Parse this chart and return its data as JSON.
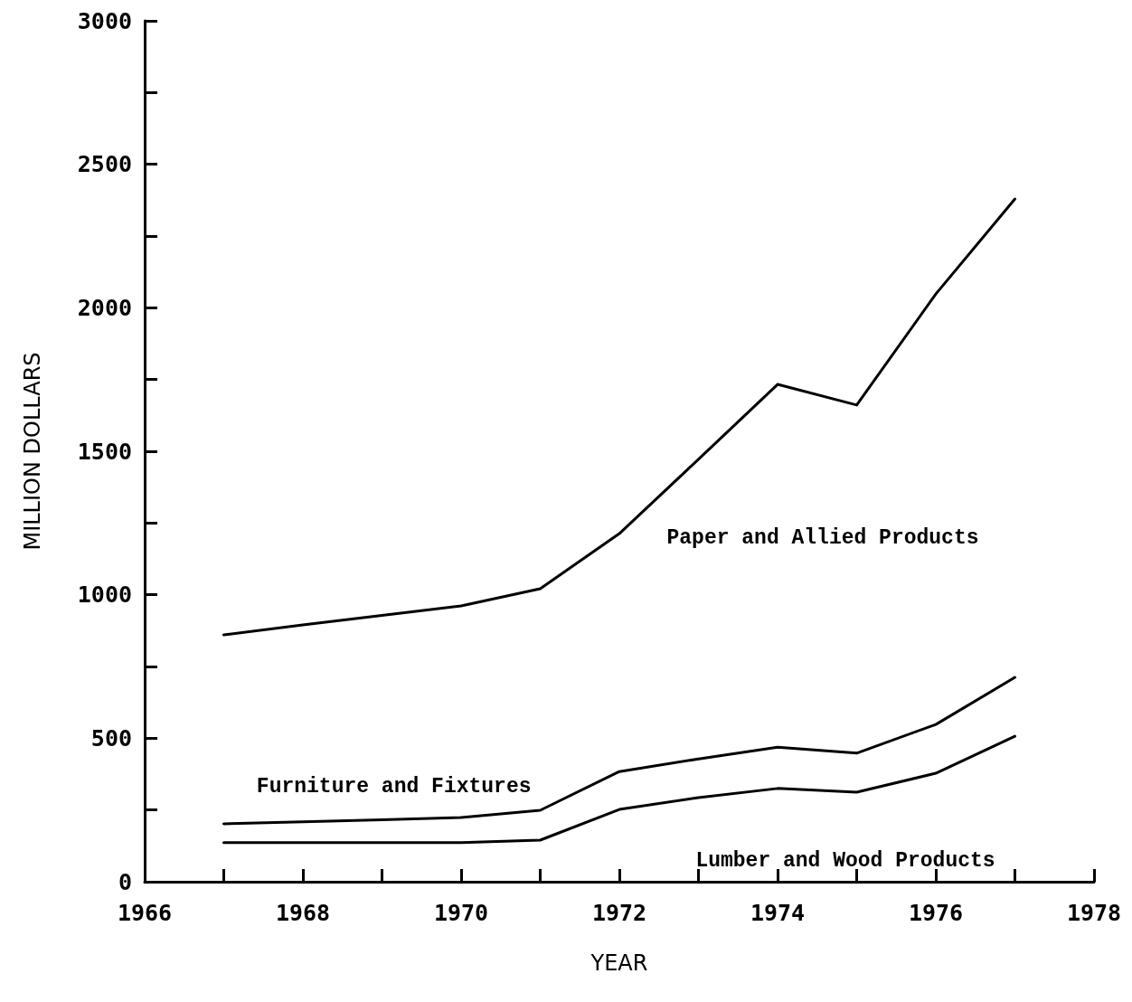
{
  "chart_data": {
    "type": "line",
    "xlabel": "YEAR",
    "ylabel": "MILLION DOLLARS",
    "x": [
      1967,
      1968,
      1969,
      1970,
      1971,
      1972,
      1973,
      1974,
      1975,
      1976,
      1977
    ],
    "series": [
      {
        "name": "Paper and Allied Products",
        "color": "#000000",
        "values": [
          860,
          895,
          928,
          961,
          1021,
          1213,
          1472,
          1733,
          1661,
          2048,
          2379
        ]
      },
      {
        "name": "Furniture and Fixtures",
        "color": "#000000",
        "values": [
          202,
          209,
          216,
          224,
          249,
          384,
          428,
          469,
          448,
          548,
          712
        ]
      },
      {
        "name": "Lumber and Wood Products",
        "color": "#000000",
        "values": [
          136,
          136,
          136,
          136,
          145,
          252,
          293,
          325,
          312,
          378,
          507
        ]
      }
    ],
    "xlim": [
      1966,
      1978
    ],
    "xticks": [
      1966,
      {
        "value": 1967,
        "label": null
      },
      1968,
      {
        "value": 1969,
        "label": null
      },
      1970,
      {
        "value": 1971,
        "label": null
      },
      1972,
      {
        "value": 1973,
        "label": null
      },
      1974,
      {
        "value": 1975,
        "label": null
      },
      1976,
      {
        "value": 1977,
        "label": null
      },
      1978
    ],
    "ylim": [
      0,
      3000
    ],
    "yticks": [
      0,
      {
        "value": 250,
        "label": null
      },
      500,
      {
        "value": 750,
        "label": null
      },
      1000,
      {
        "value": 1250,
        "label": null
      },
      1500,
      {
        "value": 1750,
        "label": null
      },
      2000,
      {
        "value": 2250,
        "label": null
      },
      2500,
      {
        "value": 2750,
        "label": null
      },
      3000
    ],
    "grid": false,
    "legend": false,
    "marker": "none",
    "line_style": "solid"
  }
}
